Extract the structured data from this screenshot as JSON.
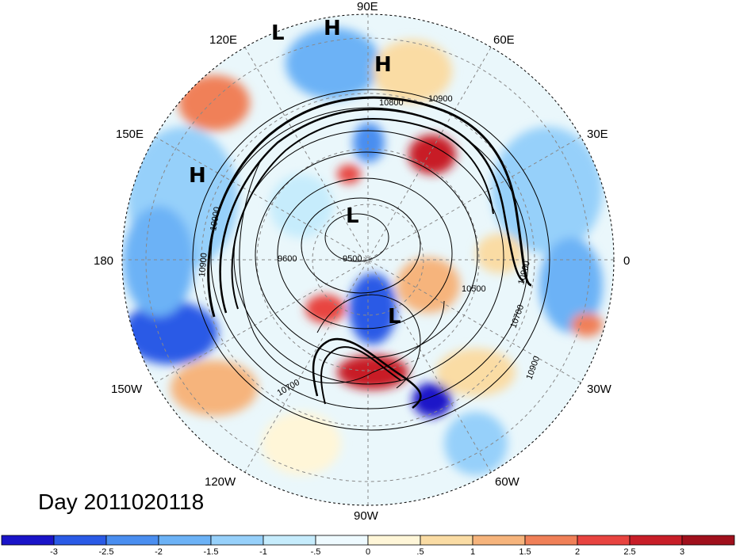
{
  "title": "Day 2011020118",
  "longitude_labels": [
    "90E",
    "60E",
    "30E",
    "0",
    "30W",
    "60W",
    "90W",
    "120W",
    "150W",
    "180",
    "150E",
    "120E"
  ],
  "pressure_centers": [
    "L",
    "H",
    "H",
    "H",
    "L",
    "L"
  ],
  "contour_labels": [
    "10800",
    "10900",
    "10900",
    "10900",
    "9600",
    "9500",
    "10500",
    "10700",
    "10900",
    "10700",
    "10900"
  ],
  "colorbar": {
    "ticks": [
      "-3",
      "-2.5",
      "-2",
      "-1.5",
      "-1",
      "-.5",
      "0",
      ".5",
      "1",
      "1.5",
      "2",
      "2.5",
      "3"
    ],
    "colors": [
      "#1a14c8",
      "#2a5ae6",
      "#4a8ef0",
      "#6cb2f6",
      "#96d0fa",
      "#c6ecfc",
      "#eefaff",
      "#fff6d8",
      "#fadca4",
      "#f6b47c",
      "#f08058",
      "#e84440",
      "#c81e28",
      "#a0101c"
    ]
  }
}
